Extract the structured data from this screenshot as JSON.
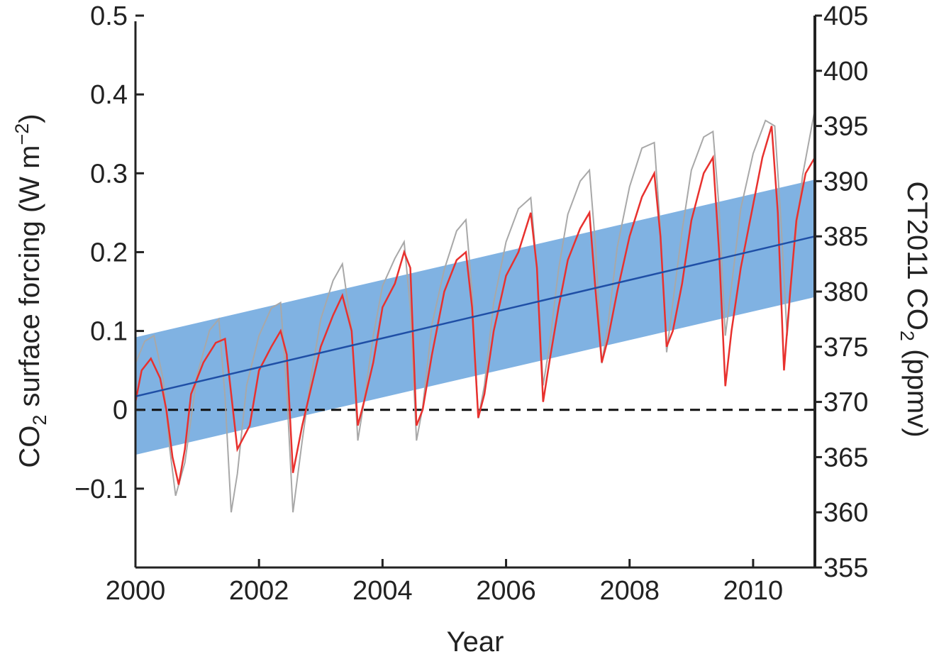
{
  "chart_data": {
    "type": "line",
    "title": "",
    "xlabel": "Year",
    "ylabel": "CO2 surface forcing (W m-2)",
    "ylabel_parts": {
      "pre": "CO",
      "sub": "2",
      "mid": " surface forcing (W m",
      "sup": "−2",
      "post": ")"
    },
    "y2label": "CT2011 CO2 (ppmv)",
    "y2label_parts": {
      "pre": "CT2011 CO",
      "sub": "2",
      "post": " (ppmv)"
    },
    "xlim": [
      2000,
      2011
    ],
    "ylim": [
      -0.2,
      0.5
    ],
    "y2lim": [
      355,
      405
    ],
    "xticks": [
      2000,
      2002,
      2004,
      2006,
      2008,
      2010
    ],
    "xtick_labels": [
      "2000",
      "2002",
      "2004",
      "2006",
      "2008",
      "2010"
    ],
    "yticks": [
      -0.1,
      0,
      0.1,
      0.2,
      0.3,
      0.4,
      0.5
    ],
    "ytick_labels": [
      "−0.1",
      "0",
      "0.1",
      "0.2",
      "0.3",
      "0.4",
      "0.5"
    ],
    "y2ticks": [
      355,
      360,
      365,
      370,
      375,
      380,
      385,
      390,
      395,
      400,
      405
    ],
    "y2tick_labels": [
      "355",
      "360",
      "365",
      "370",
      "375",
      "380",
      "385",
      "390",
      "395",
      "400",
      "405"
    ],
    "grid": false,
    "colors": {
      "band": "#80b2e2",
      "trend": "#1f4fa6",
      "forcing": "#e8312e",
      "co2": "#a8a8a8",
      "zero": "#111111",
      "axis": "#222222"
    },
    "reference_line": {
      "y": 0,
      "style": "dashed"
    },
    "series": [
      {
        "kind": "band",
        "x": [
          2000,
          2011
        ],
        "lower": [
          -0.057,
          0.143
        ],
        "upper": [
          0.092,
          0.292
        ]
      },
      {
        "kind": "trend",
        "x": [
          2000,
          2011
        ],
        "y": [
          0.017,
          0.22
        ]
      },
      {
        "kind": "forcing",
        "axis": "left",
        "x": [
          2000.0,
          2000.1,
          2000.25,
          2000.4,
          2000.5,
          2000.6,
          2000.7,
          2000.8,
          2000.9,
          2001.1,
          2001.3,
          2001.45,
          2001.55,
          2001.65,
          2001.85,
          2002.0,
          2002.2,
          2002.35,
          2002.45,
          2002.55,
          2002.7,
          2002.85,
          2003.0,
          2003.2,
          2003.35,
          2003.5,
          2003.6,
          2003.7,
          2003.85,
          2004.0,
          2004.2,
          2004.35,
          2004.45,
          2004.55,
          2004.65,
          2004.8,
          2005.0,
          2005.2,
          2005.35,
          2005.45,
          2005.55,
          2005.65,
          2005.8,
          2006.0,
          2006.2,
          2006.4,
          2006.5,
          2006.6,
          2006.7,
          2006.85,
          2007.0,
          2007.2,
          2007.35,
          2007.45,
          2007.55,
          2007.65,
          2007.8,
          2008.0,
          2008.2,
          2008.4,
          2008.5,
          2008.6,
          2008.7,
          2008.85,
          2009.0,
          2009.2,
          2009.35,
          2009.45,
          2009.55,
          2009.65,
          2009.8,
          2010.0,
          2010.15,
          2010.3,
          2010.4,
          2010.5,
          2010.6,
          2010.7,
          2010.85,
          2011.0
        ],
        "y": [
          0.01,
          0.05,
          0.065,
          0.04,
          0.0,
          -0.06,
          -0.095,
          -0.05,
          0.02,
          0.06,
          0.085,
          0.09,
          0.02,
          -0.05,
          -0.02,
          0.05,
          0.08,
          0.1,
          0.07,
          -0.08,
          -0.02,
          0.03,
          0.08,
          0.12,
          0.145,
          0.1,
          -0.02,
          0.01,
          0.06,
          0.13,
          0.16,
          0.2,
          0.18,
          -0.02,
          0.0,
          0.07,
          0.15,
          0.19,
          0.2,
          0.13,
          -0.01,
          0.02,
          0.1,
          0.17,
          0.2,
          0.25,
          0.18,
          0.01,
          0.06,
          0.13,
          0.19,
          0.23,
          0.25,
          0.15,
          0.06,
          0.09,
          0.15,
          0.22,
          0.27,
          0.3,
          0.22,
          0.08,
          0.1,
          0.16,
          0.24,
          0.3,
          0.32,
          0.2,
          0.03,
          0.1,
          0.18,
          0.26,
          0.32,
          0.36,
          0.25,
          0.05,
          0.15,
          0.24,
          0.3,
          0.32
        ]
      },
      {
        "kind": "co2",
        "axis": "right",
        "x": [
          2000.0,
          2000.15,
          2000.3,
          2000.45,
          2000.55,
          2000.65,
          2000.8,
          2001.0,
          2001.2,
          2001.35,
          2001.45,
          2001.55,
          2001.65,
          2001.8,
          2002.0,
          2002.2,
          2002.35,
          2002.45,
          2002.55,
          2002.7,
          2002.85,
          2003.0,
          2003.2,
          2003.35,
          2003.5,
          2003.6,
          2003.7,
          2003.85,
          2004.0,
          2004.2,
          2004.35,
          2004.45,
          2004.55,
          2004.65,
          2004.8,
          2005.0,
          2005.2,
          2005.35,
          2005.45,
          2005.55,
          2005.65,
          2005.8,
          2006.0,
          2006.2,
          2006.4,
          2006.5,
          2006.6,
          2006.7,
          2006.85,
          2007.0,
          2007.2,
          2007.35,
          2007.45,
          2007.55,
          2007.65,
          2007.8,
          2008.0,
          2008.2,
          2008.4,
          2008.5,
          2008.6,
          2008.7,
          2008.85,
          2009.0,
          2009.2,
          2009.35,
          2009.45,
          2009.55,
          2009.65,
          2009.8,
          2010.0,
          2010.2,
          2010.35,
          2010.45,
          2010.55,
          2010.65,
          2010.8,
          2011.0
        ],
        "y": [
          373.5,
          375.5,
          376.0,
          372.0,
          366.0,
          361.5,
          364.5,
          372.5,
          376.5,
          377.5,
          370.5,
          360.0,
          363.5,
          371.5,
          376.0,
          378.5,
          379.0,
          371.0,
          360.0,
          366.5,
          372.5,
          377.5,
          381.0,
          382.5,
          376.5,
          366.5,
          370.0,
          376.0,
          380.5,
          383.0,
          384.5,
          378.5,
          366.5,
          369.5,
          377.0,
          382.0,
          385.5,
          386.5,
          380.0,
          368.5,
          371.5,
          379.0,
          384.5,
          387.5,
          388.5,
          382.0,
          371.5,
          375.0,
          382.0,
          387.0,
          390.0,
          391.0,
          384.0,
          373.5,
          377.0,
          384.0,
          389.5,
          393.0,
          393.5,
          385.5,
          374.5,
          379.0,
          385.5,
          391.0,
          394.0,
          394.5,
          387.5,
          376.0,
          380.5,
          387.5,
          392.5,
          395.5,
          395.0,
          386.5,
          376.0,
          383.0,
          390.5,
          396.5
        ]
      }
    ]
  }
}
